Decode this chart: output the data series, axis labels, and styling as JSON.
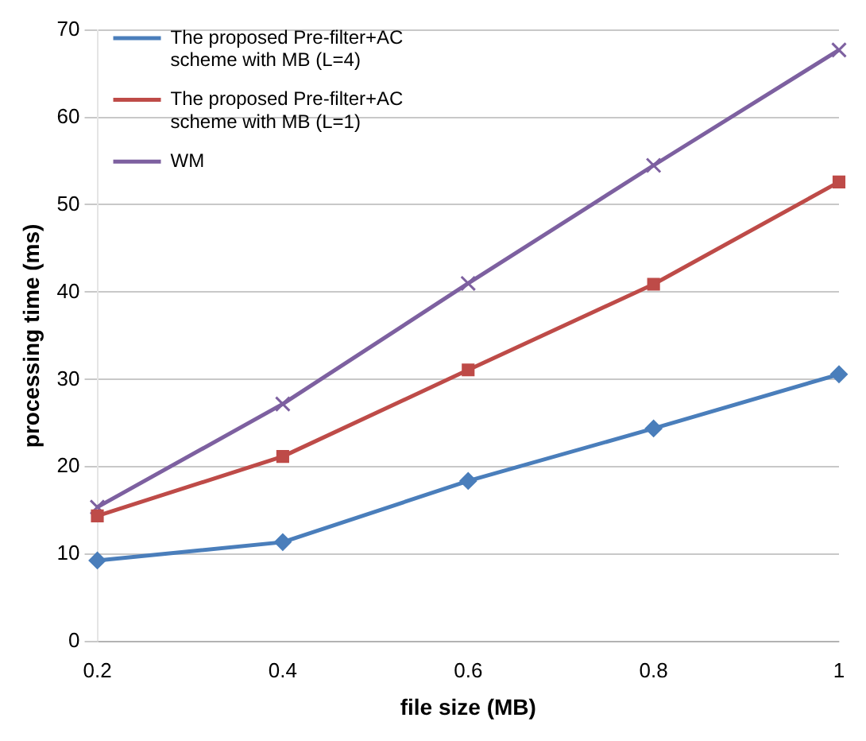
{
  "chart_data": {
    "type": "line",
    "xlabel": "file size (MB)",
    "ylabel": "processing time (ms)",
    "categories": [
      "0.2",
      "0.4",
      "0.6",
      "0.8",
      "1"
    ],
    "series": [
      {
        "name": "The proposed Pre-filter+AC scheme with MB (L=4)",
        "color": "#4a7ebb",
        "marker": "diamond",
        "values": [
          9.3,
          11.4,
          18.4,
          24.4,
          30.6
        ]
      },
      {
        "name": "The proposed Pre-filter+AC scheme with MB (L=1)",
        "color": "#be4b48",
        "marker": "square",
        "values": [
          14.4,
          21.2,
          31.1,
          40.9,
          52.6
        ]
      },
      {
        "name": "WM",
        "color": "#7d60a0",
        "marker": "cross",
        "values": [
          15.4,
          27.2,
          41.0,
          54.5,
          67.7
        ]
      }
    ],
    "ylim": [
      0,
      70
    ],
    "yticks": [
      0,
      10,
      20,
      30,
      40,
      50,
      60,
      70
    ],
    "grid": "y",
    "legend": "top left"
  }
}
